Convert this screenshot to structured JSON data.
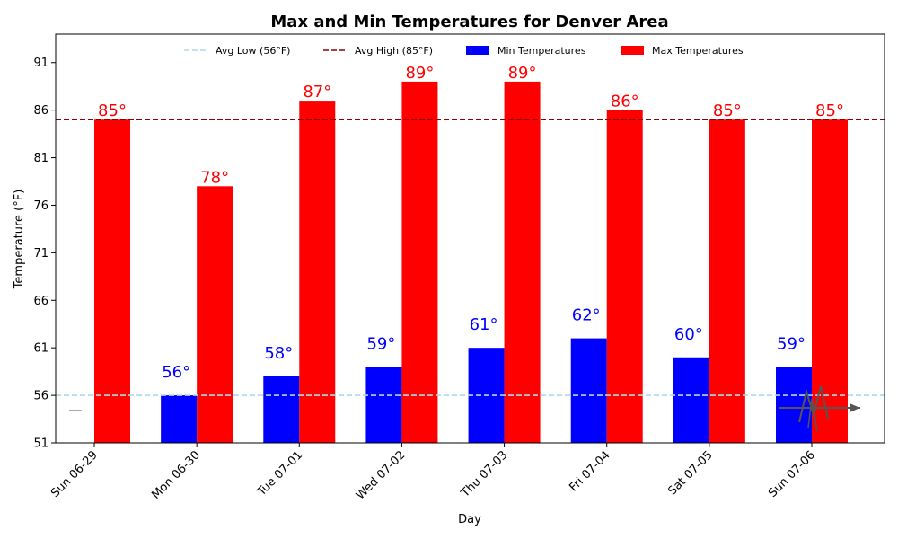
{
  "chart_data": {
    "type": "bar",
    "title": "Max and Min Temperatures for Denver Area",
    "xlabel": "Day",
    "ylabel": "Temperature (°F)",
    "categories": [
      "Sun 06-29",
      "Mon 06-30",
      "Tue 07-01",
      "Wed 07-02",
      "Thu 07-03",
      "Fri 07-04",
      "Sat 07-05",
      "Sun 07-06"
    ],
    "ylim": [
      51,
      94
    ],
    "yticks": [
      51,
      56,
      61,
      66,
      71,
      76,
      81,
      86,
      91
    ],
    "grid": false,
    "legend_position": "top-center",
    "series": [
      {
        "name": "Min Temperatures",
        "color": "#0000ff",
        "values": [
          null,
          56,
          58,
          59,
          61,
          62,
          60,
          59
        ],
        "labels": [
          "",
          "56°",
          "58°",
          "59°",
          "61°",
          "62°",
          "60°",
          "59°"
        ]
      },
      {
        "name": "Max Temperatures",
        "color": "#ff0000",
        "values": [
          85,
          78,
          87,
          89,
          89,
          86,
          85,
          85
        ],
        "labels": [
          "85°",
          "78°",
          "87°",
          "89°",
          "89°",
          "86°",
          "85°",
          "85°"
        ]
      }
    ],
    "reference_lines": [
      {
        "name": "Avg Low (56°F)",
        "value": 56,
        "color": "#add8e6",
        "style": "dashed"
      },
      {
        "name": "Avg High (85°F)",
        "value": 85,
        "color": "#8b0000",
        "style": "dashed"
      }
    ],
    "legend_entries": [
      "Avg Low (56°F)",
      "Avg High (85°F)",
      "Min Temperatures",
      "Max Temperatures"
    ]
  }
}
